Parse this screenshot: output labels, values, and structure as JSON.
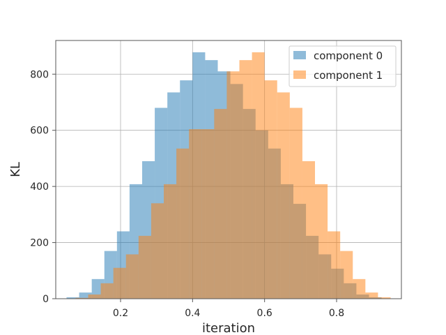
{
  "chart_data": {
    "type": "bar",
    "xlabel": "iteration",
    "ylabel": "KL",
    "xlim": [
      0.02,
      0.98
    ],
    "ylim": [
      0,
      920
    ],
    "xticks": [
      "0.2",
      "0.4",
      "0.6",
      "0.8"
    ],
    "yticks": [
      "0",
      "200",
      "400",
      "600",
      "800"
    ],
    "grid": true,
    "legend_position": "top-right",
    "series": [
      {
        "name": "component 0",
        "color": "#1f77b4",
        "opacity": 0.5,
        "bins": [
          [
            0.05,
            0.085,
            5
          ],
          [
            0.085,
            0.12,
            22
          ],
          [
            0.12,
            0.155,
            70
          ],
          [
            0.155,
            0.19,
            170
          ],
          [
            0.19,
            0.225,
            240
          ],
          [
            0.225,
            0.26,
            408
          ],
          [
            0.26,
            0.295,
            490
          ],
          [
            0.295,
            0.33,
            680
          ],
          [
            0.33,
            0.365,
            735
          ],
          [
            0.365,
            0.4,
            778
          ],
          [
            0.4,
            0.435,
            878
          ],
          [
            0.435,
            0.47,
            850
          ],
          [
            0.47,
            0.505,
            810
          ],
          [
            0.505,
            0.54,
            765
          ],
          [
            0.54,
            0.575,
            676
          ],
          [
            0.575,
            0.61,
            600
          ],
          [
            0.61,
            0.645,
            535
          ],
          [
            0.645,
            0.68,
            408
          ],
          [
            0.68,
            0.715,
            338
          ],
          [
            0.715,
            0.75,
            224
          ],
          [
            0.75,
            0.785,
            158
          ],
          [
            0.785,
            0.82,
            107
          ],
          [
            0.82,
            0.855,
            55
          ],
          [
            0.855,
            0.89,
            15
          ],
          [
            0.89,
            0.925,
            5
          ]
        ]
      },
      {
        "name": "component 1",
        "color": "#ff7f0e",
        "opacity": 0.5,
        "bins": [
          [
            0.075,
            0.11,
            3
          ],
          [
            0.11,
            0.145,
            15
          ],
          [
            0.145,
            0.18,
            55
          ],
          [
            0.18,
            0.215,
            110
          ],
          [
            0.215,
            0.25,
            158
          ],
          [
            0.25,
            0.285,
            224
          ],
          [
            0.285,
            0.32,
            340
          ],
          [
            0.32,
            0.355,
            408
          ],
          [
            0.355,
            0.39,
            535
          ],
          [
            0.39,
            0.425,
            604
          ],
          [
            0.425,
            0.46,
            604
          ],
          [
            0.46,
            0.495,
            676
          ],
          [
            0.495,
            0.53,
            810
          ],
          [
            0.53,
            0.565,
            850
          ],
          [
            0.565,
            0.6,
            878
          ],
          [
            0.6,
            0.635,
            778
          ],
          [
            0.635,
            0.67,
            735
          ],
          [
            0.67,
            0.705,
            680
          ],
          [
            0.705,
            0.74,
            490
          ],
          [
            0.74,
            0.775,
            408
          ],
          [
            0.775,
            0.81,
            240
          ],
          [
            0.81,
            0.845,
            170
          ],
          [
            0.845,
            0.88,
            70
          ],
          [
            0.88,
            0.915,
            22
          ],
          [
            0.915,
            0.95,
            5
          ]
        ]
      }
    ]
  }
}
